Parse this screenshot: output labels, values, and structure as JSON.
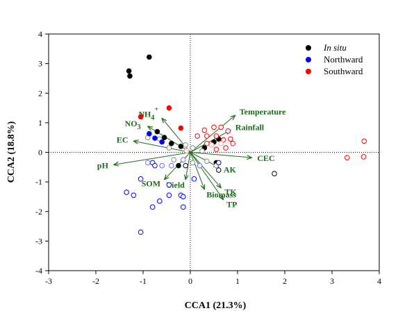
{
  "chart_data": {
    "type": "scatter",
    "xlabel": "CCA1 (21.3%)",
    "ylabel": "CCA2 (18.8%)",
    "xlim": [
      -3,
      4
    ],
    "ylim": [
      -4,
      4
    ],
    "xticks": [
      -3,
      -2,
      -1,
      0,
      1,
      2,
      3,
      4
    ],
    "yticks": [
      -4,
      -3,
      -2,
      -1,
      0,
      1,
      2,
      3,
      4
    ],
    "reference_lines": "dotted at x=0 and y=0",
    "legend": {
      "position": "top-right",
      "entries": [
        {
          "label": "In situ",
          "italic": true,
          "color": "#000000"
        },
        {
          "label": "Northward",
          "italic": false,
          "color": "#0000ff"
        },
        {
          "label": "Southward",
          "italic": false,
          "color": "#ff0000"
        }
      ]
    },
    "series": [
      {
        "name": "In situ",
        "marker": "filled",
        "color": "#000000",
        "points": [
          [
            -1.3,
            2.75
          ],
          [
            -1.28,
            2.58
          ],
          [
            -0.87,
            3.22
          ],
          [
            -0.7,
            0.7
          ],
          [
            -0.55,
            0.5
          ],
          [
            -0.4,
            0.3
          ],
          [
            -0.2,
            0.2
          ],
          [
            0.3,
            0.15
          ],
          [
            0.5,
            0.35
          ],
          [
            0.6,
            0.45
          ],
          [
            -0.25,
            -0.45
          ],
          [
            0.55,
            -0.35
          ]
        ]
      },
      {
        "name": "In situ",
        "marker": "open",
        "color": "#000000",
        "points": [
          [
            1.78,
            -0.72
          ],
          [
            -0.1,
            -0.45
          ],
          [
            0.6,
            -0.6
          ]
        ]
      },
      {
        "name": "In situ",
        "marker": "open-gray",
        "color": "#888888",
        "points": [
          [
            -0.9,
            0.5
          ],
          [
            -0.65,
            0.45
          ],
          [
            -0.45,
            0.15
          ],
          [
            -0.1,
            0.25
          ],
          [
            0.05,
            0.15
          ],
          [
            0.25,
            0.05
          ],
          [
            -0.35,
            -0.25
          ],
          [
            0.05,
            -0.35
          ],
          [
            0.35,
            -0.3
          ],
          [
            0.55,
            -0.45
          ]
        ]
      },
      {
        "name": "Northward",
        "marker": "filled",
        "color": "#0000ff",
        "points": [
          [
            -0.87,
            0.63
          ],
          [
            -0.75,
            0.48
          ],
          [
            -0.6,
            0.35
          ]
        ]
      },
      {
        "name": "Northward",
        "marker": "open",
        "color": "#0000ff",
        "points": [
          [
            -1.35,
            -1.35
          ],
          [
            -1.2,
            -1.45
          ],
          [
            -1.05,
            -0.9
          ],
          [
            -0.8,
            -0.35
          ],
          [
            -0.75,
            -0.45
          ],
          [
            -0.65,
            -1.65
          ],
          [
            -0.8,
            -1.85
          ],
          [
            -0.45,
            -1.1
          ],
          [
            -0.45,
            -1.45
          ],
          [
            -0.2,
            -1.45
          ],
          [
            -0.15,
            -1.5
          ],
          [
            -0.15,
            -1.85
          ],
          [
            -1.05,
            -2.7
          ],
          [
            0.08,
            -0.9
          ],
          [
            0.6,
            -0.35
          ]
        ]
      },
      {
        "name": "Northward",
        "marker": "open-light",
        "color": "#6a6aff",
        "points": [
          [
            -0.9,
            -0.35
          ],
          [
            -0.6,
            -0.45
          ],
          [
            -0.4,
            -0.45
          ],
          [
            -0.15,
            -0.25
          ],
          [
            0.2,
            -0.45
          ]
        ]
      },
      {
        "name": "Southward",
        "marker": "filled",
        "color": "#ff0000",
        "points": [
          [
            -1.05,
            1.2
          ],
          [
            -0.45,
            1.5
          ],
          [
            -0.2,
            0.82
          ]
        ]
      },
      {
        "name": "Southward",
        "marker": "open",
        "color": "#ff0000",
        "points": [
          [
            0.15,
            0.55
          ],
          [
            0.3,
            0.75
          ],
          [
            0.35,
            0.55
          ],
          [
            0.5,
            0.85
          ],
          [
            0.65,
            0.85
          ],
          [
            0.8,
            0.72
          ],
          [
            0.55,
            0.55
          ],
          [
            0.85,
            0.45
          ],
          [
            0.9,
            0.3
          ],
          [
            0.75,
            0.15
          ],
          [
            0.55,
            0.1
          ],
          [
            0.7,
            0.42
          ],
          [
            0.35,
            0.3
          ],
          [
            3.32,
            -0.18
          ],
          [
            3.67,
            -0.15
          ],
          [
            3.68,
            0.38
          ]
        ]
      },
      {
        "name": "Southward",
        "marker": "open-light",
        "color": "#ff9a9a",
        "points": [
          [
            -0.08,
            0.05
          ],
          [
            0.45,
            0.25
          ],
          [
            0.65,
            0.3
          ]
        ]
      }
    ],
    "vectors": [
      {
        "label": "Temperature",
        "x": 0.95,
        "y": 1.25
      },
      {
        "label": "Rainfall",
        "x": 0.85,
        "y": 0.75
      },
      {
        "label": "CEC",
        "x": 1.3,
        "y": -0.18
      },
      {
        "label": "AK",
        "x": 0.6,
        "y": -0.5
      },
      {
        "label": "TK",
        "x": 0.65,
        "y": -1.2
      },
      {
        "label": "TP",
        "x": 0.7,
        "y": -1.6
      },
      {
        "label": "Biomass",
        "x": 0.3,
        "y": -1.25
      },
      {
        "label": "Yield",
        "x": -0.1,
        "y": -0.92
      },
      {
        "label": "SOM",
        "x": -0.55,
        "y": -0.92
      },
      {
        "label": "pH",
        "x": -1.62,
        "y": -0.42
      },
      {
        "label": "EC",
        "x": -1.2,
        "y": 0.38
      },
      {
        "label": "NO3-",
        "x": -0.9,
        "y": 0.88
      },
      {
        "label": "NH4+",
        "x": -0.6,
        "y": 1.15
      }
    ]
  }
}
